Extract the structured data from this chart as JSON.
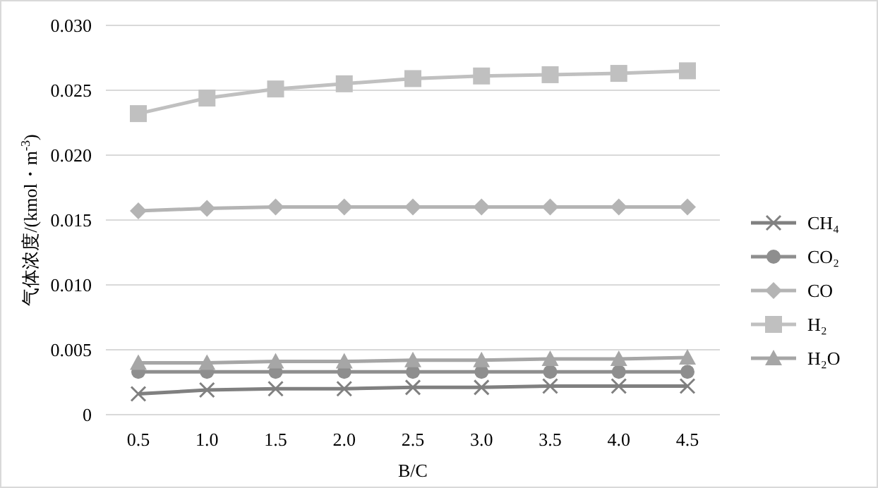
{
  "chart_data": {
    "type": "line",
    "xlabel": "B/C",
    "ylabel": "气体浓度/(kmol・m$^{-3}$)",
    "categories": [
      "0.5",
      "1.0",
      "1.5",
      "2.0",
      "2.5",
      "3.0",
      "3.5",
      "4.0",
      "4.5"
    ],
    "ylim": [
      0,
      0.03
    ],
    "yticks": [
      0,
      {
        "value": 0.005,
        "label": "0.005"
      },
      {
        "value": 0.01,
        "label": "0.010"
      },
      {
        "value": 0.015,
        "label": "0.015"
      },
      {
        "value": 0.02,
        "label": "0.020"
      },
      {
        "value": 0.025,
        "label": "0.025"
      },
      {
        "value": 0.03,
        "label": "0.030"
      }
    ],
    "grid": "y",
    "legend": "right",
    "series": [
      {
        "name": "CH₄",
        "color": "#808080",
        "marker": "cross",
        "values": [
          0.0016,
          0.0019,
          0.002,
          0.002,
          0.0021,
          0.0021,
          0.0022,
          0.0022,
          0.0022
        ]
      },
      {
        "name": "CO₂",
        "color": "#8e8e8e",
        "marker": "circle",
        "values": [
          0.0033,
          0.0033,
          0.0033,
          0.0033,
          0.0033,
          0.0033,
          0.0033,
          0.0033,
          0.0033
        ]
      },
      {
        "name": "CO",
        "color": "#b4b4b4",
        "marker": "diamond",
        "values": [
          0.0157,
          0.0159,
          0.016,
          0.016,
          0.016,
          0.016,
          0.016,
          0.016,
          0.016
        ]
      },
      {
        "name": "H₂",
        "color": "#c0c0c0",
        "marker": "square",
        "values": [
          0.0232,
          0.0244,
          0.0251,
          0.0255,
          0.0259,
          0.0261,
          0.0262,
          0.0263,
          0.0265
        ]
      },
      {
        "name": "H₂O",
        "color": "#a6a6a6",
        "marker": "triangle",
        "values": [
          0.004,
          0.004,
          0.0041,
          0.0041,
          0.0042,
          0.0042,
          0.0043,
          0.0043,
          0.0044
        ]
      }
    ]
  }
}
